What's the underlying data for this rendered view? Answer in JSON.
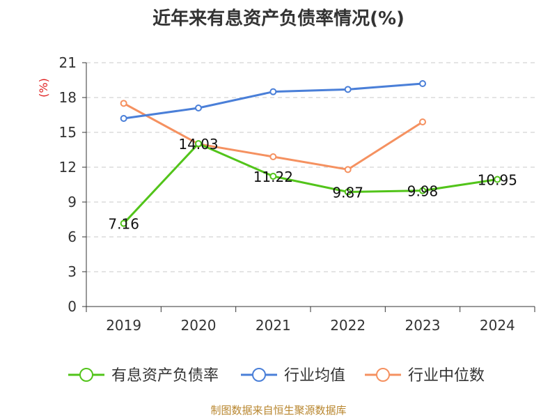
{
  "chart_data": {
    "type": "line",
    "title": "近年来有息资产负债率情况(%)",
    "ylabel": "(%)",
    "xlabel": "",
    "categories": [
      "2019",
      "2020",
      "2021",
      "2022",
      "2023",
      "2024"
    ],
    "ylim": [
      0,
      21
    ],
    "yticks": [
      0,
      3,
      6,
      9,
      12,
      15,
      18,
      21
    ],
    "grid": true,
    "legend_position": "bottom",
    "series": [
      {
        "name": "有息资产负债率",
        "color": "#52c41a",
        "values": [
          7.16,
          14.03,
          11.22,
          9.87,
          9.98,
          10.95
        ],
        "labels": [
          "7.16",
          "14.03",
          "11.22",
          "9.87",
          "9.98",
          "10.95"
        ]
      },
      {
        "name": "行业均值",
        "color": "#4a7fd8",
        "values": [
          16.2,
          17.1,
          18.5,
          18.7,
          19.2,
          null
        ]
      },
      {
        "name": "行业中位数",
        "color": "#f59160",
        "values": [
          17.5,
          14.0,
          12.9,
          11.8,
          15.9,
          null
        ]
      }
    ]
  },
  "source_note": "制图数据来自恒生聚源数据库"
}
